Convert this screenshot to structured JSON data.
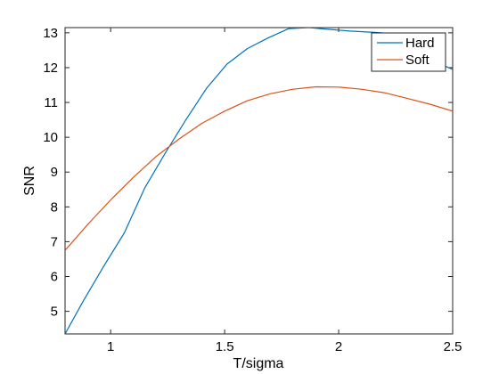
{
  "chart_data": {
    "type": "line",
    "title": "",
    "xlabel": "T/sigma",
    "ylabel": "SNR",
    "xlim": [
      0.8,
      2.5
    ],
    "ylim": [
      4.35,
      13.15
    ],
    "grid": false,
    "legend_position": "top-right",
    "x_ticks": [
      {
        "value": 1,
        "label": "1"
      },
      {
        "value": 1.5,
        "label": "1.5"
      },
      {
        "value": 2,
        "label": "2"
      },
      {
        "value": 2.5,
        "label": "2.5"
      }
    ],
    "y_ticks": [
      {
        "value": 5,
        "label": "5"
      },
      {
        "value": 6,
        "label": "6"
      },
      {
        "value": 7,
        "label": "7"
      },
      {
        "value": 8,
        "label": "8"
      },
      {
        "value": 9,
        "label": "9"
      },
      {
        "value": 10,
        "label": "10"
      },
      {
        "value": 11,
        "label": "11"
      },
      {
        "value": 12,
        "label": "12"
      },
      {
        "value": 13,
        "label": "13"
      }
    ],
    "series": [
      {
        "name": "Hard",
        "color": "#0072BD",
        "x": [
          0.8,
          0.88,
          0.97,
          1.06,
          1.15,
          1.24,
          1.33,
          1.42,
          1.51,
          1.6,
          1.69,
          1.78,
          1.87,
          1.96,
          2.05,
          2.14,
          2.23,
          2.32,
          2.41,
          2.5
        ],
        "y": [
          4.35,
          5.3,
          6.3,
          7.25,
          8.55,
          9.55,
          10.5,
          11.4,
          12.1,
          12.55,
          12.85,
          13.12,
          13.15,
          13.1,
          13.05,
          13.02,
          12.98,
          12.6,
          12.2,
          11.95
        ]
      },
      {
        "name": "Soft",
        "color": "#D95319",
        "x": [
          0.8,
          0.9,
          1.0,
          1.1,
          1.2,
          1.3,
          1.4,
          1.5,
          1.6,
          1.7,
          1.8,
          1.9,
          2.0,
          2.1,
          2.2,
          2.3,
          2.4,
          2.5
        ],
        "y": [
          6.75,
          7.5,
          8.2,
          8.85,
          9.45,
          9.95,
          10.4,
          10.75,
          11.05,
          11.25,
          11.38,
          11.45,
          11.44,
          11.38,
          11.28,
          11.12,
          10.95,
          10.75
        ]
      }
    ]
  }
}
